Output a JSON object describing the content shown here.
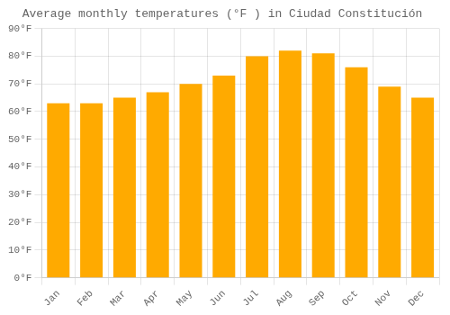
{
  "chart_data": {
    "type": "bar",
    "title": "Average monthly temperatures (°F ) in Ciudad Constitución",
    "categories": [
      "Jan",
      "Feb",
      "Mar",
      "Apr",
      "May",
      "Jun",
      "Jul",
      "Aug",
      "Sep",
      "Oct",
      "Nov",
      "Dec"
    ],
    "values": [
      63,
      63,
      65,
      67,
      70,
      73,
      80,
      82,
      81,
      76,
      69,
      65
    ],
    "color": "#FFAA00",
    "ylim": [
      0,
      90
    ],
    "yticks": [
      {
        "value": 0,
        "label": "0°F"
      },
      {
        "value": 10,
        "label": "10°F"
      },
      {
        "value": 20,
        "label": "20°F"
      },
      {
        "value": 30,
        "label": "30°F"
      },
      {
        "value": 40,
        "label": "40°F"
      },
      {
        "value": 50,
        "label": "50°F"
      },
      {
        "value": 60,
        "label": "60°F"
      },
      {
        "value": 70,
        "label": "70°F"
      },
      {
        "value": 80,
        "label": "80°F"
      },
      {
        "value": 90,
        "label": "90°F"
      }
    ],
    "grid": true
  }
}
